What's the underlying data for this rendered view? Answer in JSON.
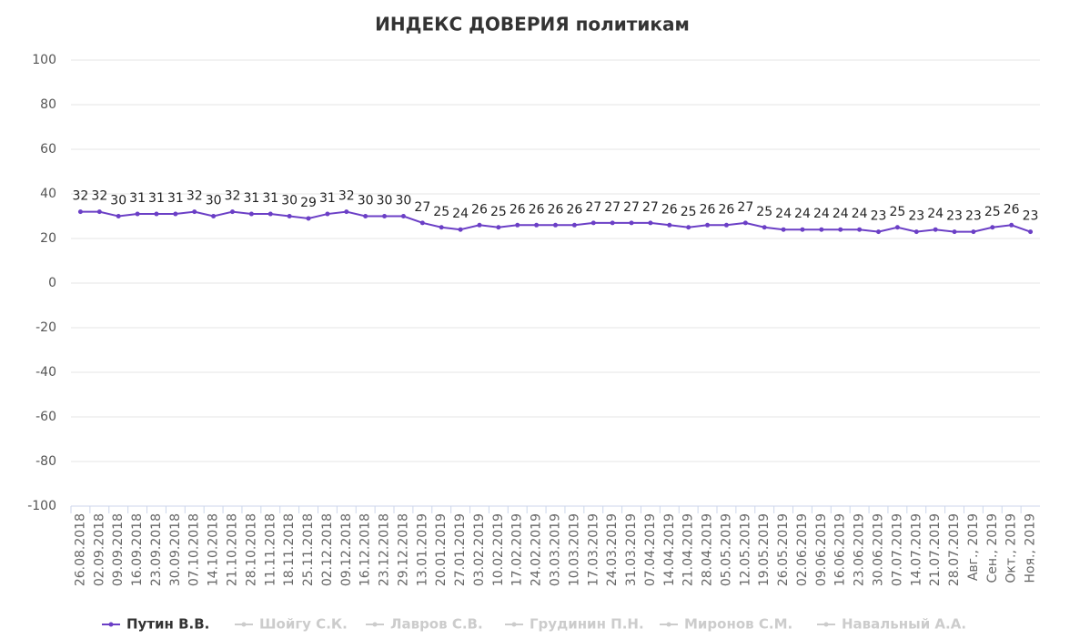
{
  "chart_data": {
    "type": "line",
    "title": "ИНДЕКС ДОВЕРИЯ политикам",
    "categories": [
      "26.08.2018",
      "02.09.2018",
      "09.09.2018",
      "16.09.2018",
      "23.09.2018",
      "30.09.2018",
      "07.10.2018",
      "14.10.2018",
      "21.10.2018",
      "28.10.2018",
      "11.11.2018",
      "18.11.2018",
      "25.11.2018",
      "02.12.2018",
      "09.12.2018",
      "16.12.2018",
      "23.12.2018",
      "29.12.2018",
      "13.01.2019",
      "20.01.2019",
      "27.01.2019",
      "03.02.2019",
      "10.02.2019",
      "17.02.2019",
      "24.02.2019",
      "03.03.2019",
      "10.03.2019",
      "17.03.2019",
      "24.03.2019",
      "31.03.2019",
      "07.04.2019",
      "14.04.2019",
      "21.04.2019",
      "28.04.2019",
      "05.05.2019",
      "12.05.2019",
      "19.05.2019",
      "26.05.2019",
      "02.06.2019",
      "09.06.2019",
      "16.06.2019",
      "23.06.2019",
      "30.06.2019",
      "07.07.2019",
      "14.07.2019",
      "21.07.2019",
      "28.07.2019",
      "Авг., 2019",
      "Сен., 2019",
      "Окт., 2019",
      "Ноя., 2019"
    ],
    "series": [
      {
        "name": "Путин В.В.",
        "color": "#6b3fc6",
        "visible": true,
        "values": [
          32,
          32,
          30,
          31,
          31,
          31,
          32,
          30,
          32,
          31,
          31,
          30,
          29,
          31,
          32,
          30,
          30,
          30,
          27,
          25,
          24,
          26,
          25,
          26,
          26,
          26,
          26,
          27,
          27,
          27,
          27,
          26,
          25,
          26,
          26,
          27,
          25,
          24,
          24,
          24,
          24,
          24,
          23,
          25,
          23,
          24,
          23,
          23,
          25,
          26,
          23
        ]
      },
      {
        "name": "Шойгу С.К.",
        "color": "#cccccc",
        "visible": false
      },
      {
        "name": "Лавров С.В.",
        "color": "#cccccc",
        "visible": false
      },
      {
        "name": "Грудинин П.Н.",
        "color": "#cccccc",
        "visible": false
      },
      {
        "name": "Миронов С.М.",
        "color": "#cccccc",
        "visible": false
      },
      {
        "name": "Навальный А.А.",
        "color": "#cccccc",
        "visible": false
      }
    ],
    "ylim": [
      -100,
      100
    ],
    "yticks": [
      -100,
      -80,
      -60,
      -40,
      -20,
      0,
      20,
      40,
      60,
      80,
      100
    ],
    "grid": true
  }
}
